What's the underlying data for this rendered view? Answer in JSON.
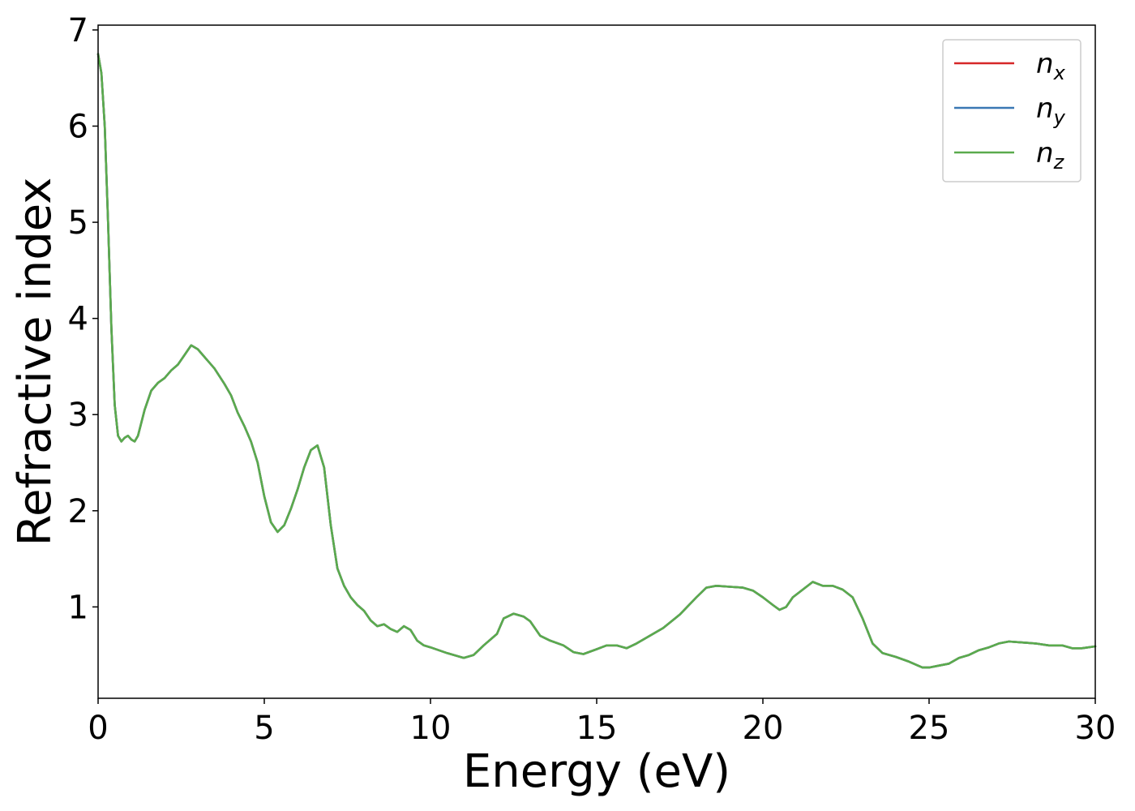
{
  "chart_data": {
    "type": "line",
    "title": "",
    "xlabel": "Energy (eV)",
    "ylabel": "Refractive index",
    "xlim": [
      0,
      30
    ],
    "ylim": [
      0.05,
      7.05
    ],
    "xticks": [
      0,
      5,
      10,
      15,
      20,
      25,
      30
    ],
    "yticks": [
      1,
      2,
      3,
      4,
      5,
      6,
      7
    ],
    "grid": false,
    "legend_position": "top-right",
    "x": [
      0,
      0.1,
      0.2,
      0.3,
      0.4,
      0.5,
      0.6,
      0.7,
      0.8,
      0.9,
      1.0,
      1.1,
      1.2,
      1.4,
      1.6,
      1.8,
      2.0,
      2.2,
      2.4,
      2.6,
      2.8,
      3.0,
      3.2,
      3.5,
      3.8,
      4.0,
      4.2,
      4.4,
      4.6,
      4.8,
      5.0,
      5.2,
      5.4,
      5.6,
      5.8,
      6.0,
      6.2,
      6.4,
      6.6,
      6.8,
      7.0,
      7.2,
      7.4,
      7.6,
      7.8,
      8.0,
      8.2,
      8.4,
      8.6,
      8.8,
      9.0,
      9.2,
      9.4,
      9.6,
      9.8,
      10.0,
      10.5,
      11.0,
      11.3,
      11.6,
      12.0,
      12.2,
      12.5,
      12.8,
      13.0,
      13.3,
      13.6,
      14.0,
      14.3,
      14.6,
      15.0,
      15.3,
      15.6,
      15.9,
      16.2,
      16.6,
      17.0,
      17.5,
      18.0,
      18.3,
      18.6,
      19.0,
      19.4,
      19.7,
      20.0,
      20.3,
      20.5,
      20.7,
      20.9,
      21.2,
      21.5,
      21.8,
      22.1,
      22.4,
      22.7,
      23.0,
      23.3,
      23.6,
      24.0,
      24.4,
      24.8,
      25.0,
      25.3,
      25.6,
      25.9,
      26.2,
      26.5,
      26.8,
      27.1,
      27.4,
      27.8,
      28.2,
      28.6,
      29.0,
      29.3,
      29.6,
      30.0
    ],
    "series": [
      {
        "name": "n_x",
        "color": "#d62728",
        "y": [
          6.75,
          6.55,
          6.0,
          5.0,
          3.9,
          3.1,
          2.78,
          2.72,
          2.76,
          2.78,
          2.74,
          2.72,
          2.78,
          3.05,
          3.25,
          3.33,
          3.38,
          3.46,
          3.52,
          3.62,
          3.72,
          3.68,
          3.6,
          3.48,
          3.32,
          3.2,
          3.02,
          2.88,
          2.72,
          2.5,
          2.15,
          1.88,
          1.78,
          1.85,
          2.02,
          2.22,
          2.45,
          2.63,
          2.68,
          2.45,
          1.85,
          1.4,
          1.22,
          1.1,
          1.02,
          0.96,
          0.86,
          0.8,
          0.82,
          0.77,
          0.74,
          0.8,
          0.76,
          0.65,
          0.6,
          0.58,
          0.52,
          0.47,
          0.5,
          0.6,
          0.72,
          0.88,
          0.93,
          0.9,
          0.85,
          0.7,
          0.65,
          0.6,
          0.53,
          0.51,
          0.56,
          0.6,
          0.6,
          0.57,
          0.62,
          0.7,
          0.78,
          0.92,
          1.1,
          1.2,
          1.22,
          1.21,
          1.2,
          1.17,
          1.1,
          1.02,
          0.97,
          1.0,
          1.1,
          1.18,
          1.26,
          1.22,
          1.22,
          1.18,
          1.1,
          0.88,
          0.62,
          0.52,
          0.48,
          0.43,
          0.37,
          0.37,
          0.39,
          0.41,
          0.47,
          0.5,
          0.55,
          0.58,
          0.62,
          0.64,
          0.63,
          0.62,
          0.6,
          0.6,
          0.57,
          0.57,
          0.59
        ]
      },
      {
        "name": "n_y",
        "color": "#3a78b4",
        "y": [
          6.75,
          6.55,
          6.0,
          5.0,
          3.9,
          3.1,
          2.78,
          2.72,
          2.76,
          2.78,
          2.74,
          2.72,
          2.78,
          3.05,
          3.25,
          3.33,
          3.38,
          3.46,
          3.52,
          3.62,
          3.72,
          3.68,
          3.6,
          3.48,
          3.32,
          3.2,
          3.02,
          2.88,
          2.72,
          2.5,
          2.15,
          1.88,
          1.78,
          1.85,
          2.02,
          2.22,
          2.45,
          2.63,
          2.68,
          2.45,
          1.85,
          1.4,
          1.22,
          1.1,
          1.02,
          0.96,
          0.86,
          0.8,
          0.82,
          0.77,
          0.74,
          0.8,
          0.76,
          0.65,
          0.6,
          0.58,
          0.52,
          0.47,
          0.5,
          0.6,
          0.72,
          0.88,
          0.93,
          0.9,
          0.85,
          0.7,
          0.65,
          0.6,
          0.53,
          0.51,
          0.56,
          0.6,
          0.6,
          0.57,
          0.62,
          0.7,
          0.78,
          0.92,
          1.1,
          1.2,
          1.22,
          1.21,
          1.2,
          1.17,
          1.1,
          1.02,
          0.97,
          1.0,
          1.1,
          1.18,
          1.26,
          1.22,
          1.22,
          1.18,
          1.1,
          0.88,
          0.62,
          0.52,
          0.48,
          0.43,
          0.37,
          0.37,
          0.39,
          0.41,
          0.47,
          0.5,
          0.55,
          0.58,
          0.62,
          0.64,
          0.63,
          0.62,
          0.6,
          0.6,
          0.57,
          0.57,
          0.59
        ]
      },
      {
        "name": "n_z",
        "color": "#5aab4d",
        "y": [
          6.75,
          6.55,
          6.0,
          5.0,
          3.9,
          3.1,
          2.78,
          2.72,
          2.76,
          2.78,
          2.74,
          2.72,
          2.78,
          3.05,
          3.25,
          3.33,
          3.38,
          3.46,
          3.52,
          3.62,
          3.72,
          3.68,
          3.6,
          3.48,
          3.32,
          3.2,
          3.02,
          2.88,
          2.72,
          2.5,
          2.15,
          1.88,
          1.78,
          1.85,
          2.02,
          2.22,
          2.45,
          2.63,
          2.68,
          2.45,
          1.85,
          1.4,
          1.22,
          1.1,
          1.02,
          0.96,
          0.86,
          0.8,
          0.82,
          0.77,
          0.74,
          0.8,
          0.76,
          0.65,
          0.6,
          0.58,
          0.52,
          0.47,
          0.5,
          0.6,
          0.72,
          0.88,
          0.93,
          0.9,
          0.85,
          0.7,
          0.65,
          0.6,
          0.53,
          0.51,
          0.56,
          0.6,
          0.6,
          0.57,
          0.62,
          0.7,
          0.78,
          0.92,
          1.1,
          1.2,
          1.22,
          1.21,
          1.2,
          1.17,
          1.1,
          1.02,
          0.97,
          1.0,
          1.1,
          1.18,
          1.26,
          1.22,
          1.22,
          1.18,
          1.1,
          0.88,
          0.62,
          0.52,
          0.48,
          0.43,
          0.37,
          0.37,
          0.39,
          0.41,
          0.47,
          0.5,
          0.55,
          0.58,
          0.62,
          0.64,
          0.63,
          0.62,
          0.6,
          0.6,
          0.57,
          0.57,
          0.59
        ]
      }
    ],
    "legend": [
      {
        "base": "n",
        "sub": "x"
      },
      {
        "base": "n",
        "sub": "y"
      },
      {
        "base": "n",
        "sub": "z"
      }
    ]
  }
}
